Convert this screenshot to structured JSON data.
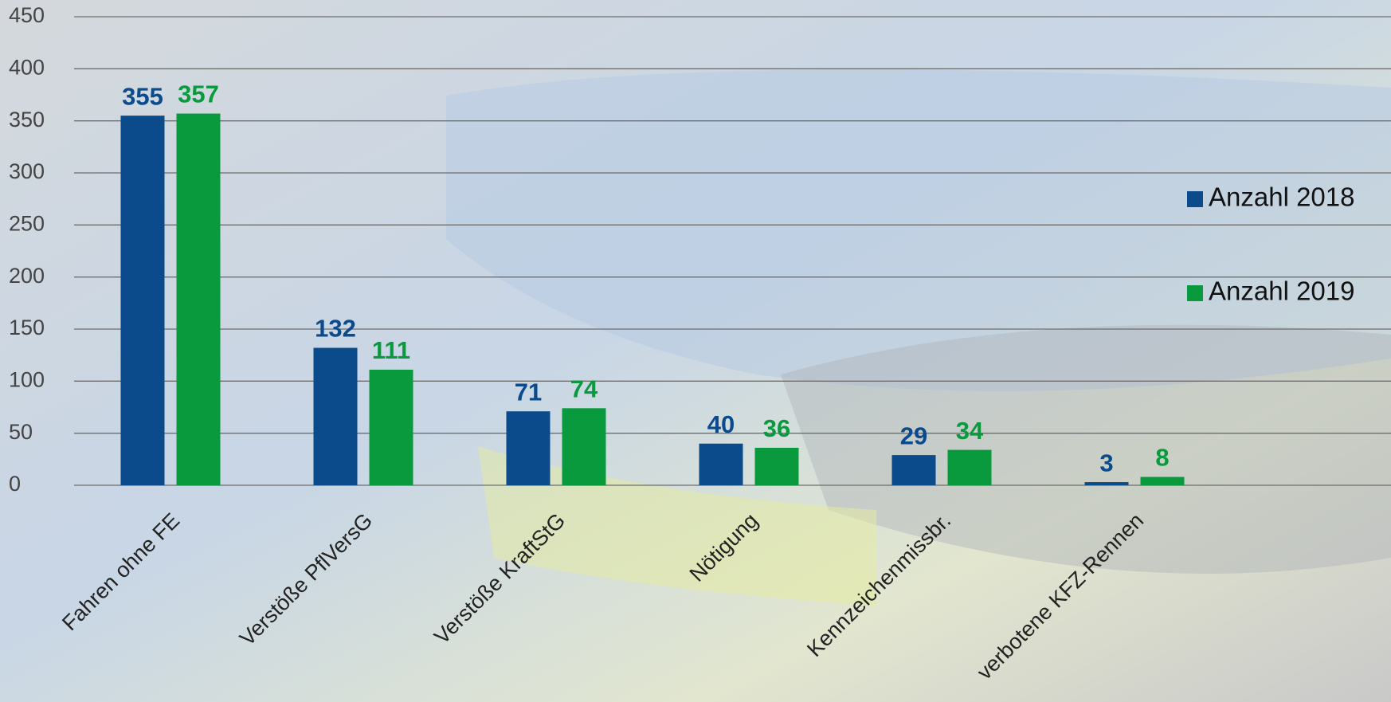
{
  "chart_data": {
    "type": "bar",
    "categories": [
      "Fahren ohne FE",
      "Verstöße PflVersG",
      "Verstöße KraftStG",
      "Nötigung",
      "Kennzeichenmissbr.",
      "verbotene KFZ-Rennen"
    ],
    "series": [
      {
        "name": "Anzahl 2018",
        "color": "#0b4a8b",
        "values": [
          355,
          132,
          71,
          40,
          29,
          3
        ]
      },
      {
        "name": "Anzahl 2019",
        "color": "#0a9a3e",
        "values": [
          357,
          111,
          74,
          36,
          34,
          8
        ]
      }
    ],
    "ylim": [
      0,
      450
    ],
    "yticks": [
      0,
      50,
      100,
      150,
      200,
      250,
      300,
      350,
      400,
      450
    ],
    "grid": true,
    "legend": "right"
  }
}
